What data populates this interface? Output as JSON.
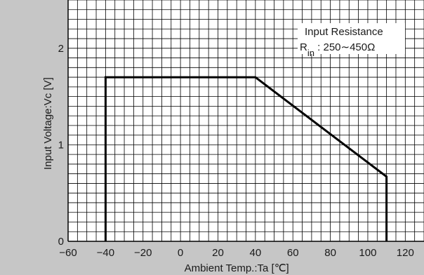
{
  "chart_data": {
    "type": "line",
    "xlabel": "Ambient Temp.:Ta [℃]",
    "ylabel": "Input Voltage:Vc [V]",
    "xlim": [
      -60,
      130
    ],
    "ylim": [
      0,
      2.5
    ],
    "x_ticks": [
      "−60",
      "−40",
      "−20",
      "0",
      "20",
      "40",
      "60",
      "80",
      "100",
      "120"
    ],
    "y_ticks": [
      "0",
      "1",
      "2"
    ],
    "grid": true,
    "series": [
      {
        "color": "#000000",
        "x": [
          -40,
          -40,
          40,
          110,
          110
        ],
        "y": [
          0,
          1.7,
          1.7,
          0.67,
          0
        ]
      }
    ],
    "annotations": {
      "line1": "Input Resistance",
      "line2_prefix": "R",
      "line2_subscript": "in",
      "line2_suffix": " : 250∼450Ω"
    },
    "background_color": "#c6c6c6",
    "plot_background": "#ffffff"
  }
}
